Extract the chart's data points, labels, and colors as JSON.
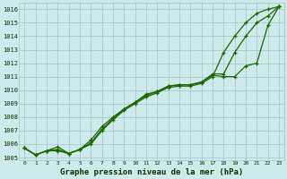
{
  "title": "Graphe pression niveau de la mer (hPa)",
  "bg_color": "#ceeaea",
  "grid_color": "#a8cccc",
  "line_color": "#1a6600",
  "xlim": [
    -0.5,
    23.5
  ],
  "ylim": [
    1004.8,
    1016.5
  ],
  "yticks": [
    1005,
    1006,
    1007,
    1008,
    1009,
    1010,
    1011,
    1012,
    1013,
    1014,
    1015,
    1016
  ],
  "xticks": [
    0,
    1,
    2,
    3,
    4,
    5,
    6,
    7,
    8,
    9,
    10,
    11,
    12,
    13,
    14,
    15,
    16,
    17,
    18,
    19,
    20,
    21,
    22,
    23
  ],
  "series1_x": [
    0,
    1,
    2,
    3,
    4,
    5,
    6,
    7,
    8,
    9,
    10,
    11,
    12,
    13,
    14,
    15,
    16,
    17,
    18,
    19,
    20,
    21,
    22,
    23
  ],
  "series1_y": [
    1005.7,
    1005.2,
    1005.5,
    1005.5,
    1005.3,
    1005.6,
    1006.0,
    1007.0,
    1007.8,
    1008.5,
    1009.0,
    1009.5,
    1009.8,
    1010.2,
    1010.3,
    1010.3,
    1010.5,
    1011.0,
    1012.8,
    1014.0,
    1015.0,
    1015.7,
    1016.0,
    1016.2
  ],
  "series2_x": [
    0,
    1,
    2,
    3,
    4,
    5,
    6,
    7,
    8,
    9,
    10,
    11,
    12,
    13,
    14,
    15,
    16,
    17,
    18,
    19,
    20,
    21,
    22,
    23
  ],
  "series2_y": [
    1005.7,
    1005.2,
    1005.5,
    1005.8,
    1005.3,
    1005.6,
    1006.3,
    1007.3,
    1008.0,
    1008.6,
    1009.1,
    1009.6,
    1009.9,
    1010.3,
    1010.4,
    1010.4,
    1010.6,
    1011.1,
    1011.0,
    1011.0,
    1011.8,
    1012.0,
    1014.8,
    1016.2
  ],
  "series3_x": [
    0,
    1,
    2,
    3,
    4,
    5,
    6,
    7,
    8,
    9,
    10,
    11,
    12,
    13,
    14,
    15,
    16,
    17,
    18,
    19,
    20,
    21,
    22,
    23
  ],
  "series3_y": [
    1005.7,
    1005.2,
    1005.5,
    1005.6,
    1005.3,
    1005.6,
    1006.1,
    1007.1,
    1007.9,
    1008.6,
    1009.1,
    1009.7,
    1009.9,
    1010.3,
    1010.4,
    1010.4,
    1010.6,
    1011.2,
    1011.2,
    1012.8,
    1014.0,
    1015.0,
    1015.5,
    1016.2
  ]
}
